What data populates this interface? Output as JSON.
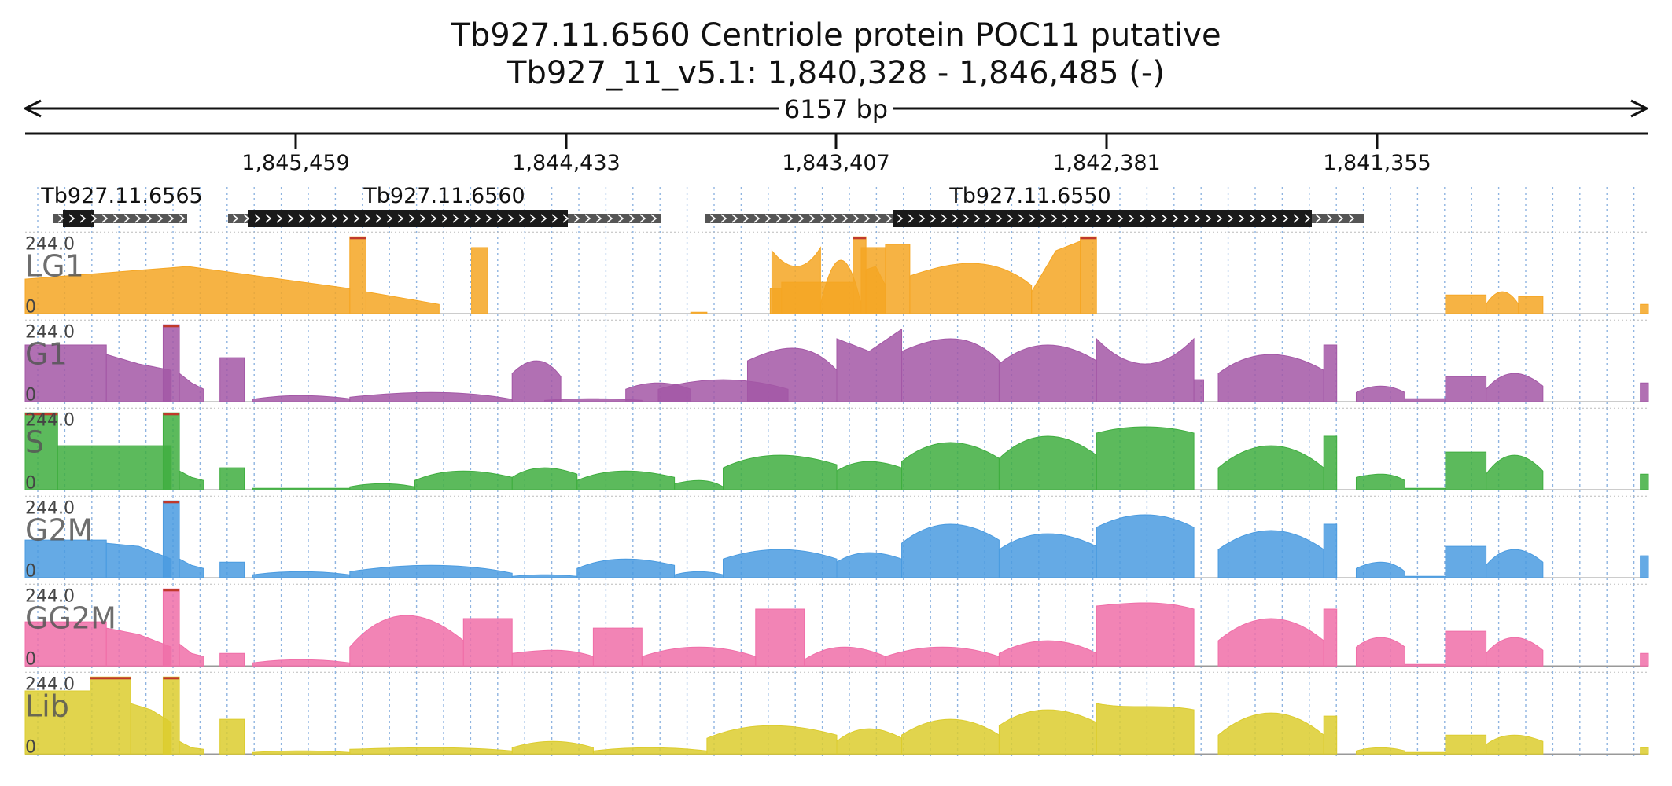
{
  "header": {
    "title_line1": "Tb927.11.6560  Centriole protein POC11  putative",
    "title_line2": "Tb927_11_v5.1: 1,840,328 - 1,846,485 (-)",
    "span_label": "6157 bp"
  },
  "axis": {
    "ticks": [
      "1,845,459",
      "1,844,433",
      "1,843,407",
      "1,842,381",
      "1,841,355"
    ]
  },
  "genes": [
    {
      "name": "Tb927.11.6565"
    },
    {
      "name": "Tb927.11.6560"
    },
    {
      "name": "Tb927.11.6550"
    }
  ],
  "colors": {
    "LG1": "#f5a623",
    "G1": "#a357a6",
    "S": "#3fae3f",
    "G2M": "#4a9be0",
    "GG2M": "#f06ea8",
    "Lib": "#dccc2e",
    "gene_block": "#1a1a1a",
    "gene_utr": "#555555",
    "grid": "#8fb4e0",
    "clip": "#c0392b"
  },
  "chart_data": {
    "type": "area",
    "x_unit": "bp (genomic coordinate, minus strand)",
    "x_range": [
      1846485,
      1840328
    ],
    "ymax_label": "244.0",
    "ymin_label": "0",
    "ylim": [
      0,
      244.0
    ],
    "tracks": [
      {
        "name": "LG1",
        "segments": [
          [
            0,
            0.2,
            110,
            150,
            80,
            "slope"
          ],
          [
            0.2,
            0.21,
            244,
            244,
            244,
            "flat"
          ],
          [
            0.21,
            0.255,
            70,
            50,
            30,
            "slope"
          ],
          [
            0.275,
            0.285,
            210,
            210,
            210,
            "flat"
          ],
          [
            0.46,
            0.49,
            200,
            150,
            210,
            "hump"
          ],
          [
            0.49,
            0.515,
            30,
            170,
            30,
            "hump"
          ],
          [
            0.515,
            0.53,
            210,
            210,
            210,
            "flat"
          ],
          [
            0.41,
            0.42,
            5,
            5,
            5,
            "flat"
          ],
          [
            0.459,
            0.466,
            80,
            80,
            80,
            "flat"
          ],
          [
            0.466,
            0.51,
            100,
            110,
            100,
            "flat"
          ],
          [
            0.51,
            0.518,
            244,
            244,
            244,
            "flat"
          ],
          [
            0.518,
            0.53,
            140,
            150,
            90,
            "slope"
          ],
          [
            0.53,
            0.545,
            220,
            220,
            220,
            "flat"
          ],
          [
            0.545,
            0.62,
            120,
            160,
            90,
            "hump"
          ],
          [
            0.62,
            0.65,
            70,
            200,
            230,
            "slope"
          ],
          [
            0.65,
            0.66,
            244,
            244,
            244,
            "flat"
          ],
          [
            0.875,
            0.9,
            60,
            60,
            60,
            "flat"
          ],
          [
            0.9,
            0.92,
            30,
            70,
            30,
            "hump"
          ],
          [
            0.92,
            0.935,
            55,
            55,
            55,
            "flat"
          ],
          [
            0.995,
            1.0,
            30,
            30,
            30,
            "flat"
          ]
        ]
      },
      {
        "name": "G1",
        "segments": [
          [
            0,
            0.05,
            180,
            200,
            160,
            "flat"
          ],
          [
            0.05,
            0.09,
            150,
            120,
            100,
            "slope"
          ],
          [
            0.085,
            0.095,
            244,
            244,
            244,
            "flat"
          ],
          [
            0.095,
            0.11,
            90,
            60,
            40,
            "slope"
          ],
          [
            0.12,
            0.135,
            140,
            140,
            140,
            "flat"
          ],
          [
            0.14,
            0.2,
            8,
            20,
            10,
            "hump"
          ],
          [
            0.2,
            0.3,
            15,
            30,
            8,
            "hump"
          ],
          [
            0.32,
            0.38,
            5,
            10,
            5,
            "hump"
          ],
          [
            0.39,
            0.47,
            40,
            70,
            40,
            "hump"
          ],
          [
            0.3,
            0.33,
            90,
            130,
            80,
            "hump"
          ],
          [
            0.37,
            0.41,
            40,
            60,
            40,
            "hump"
          ],
          [
            0.445,
            0.5,
            130,
            170,
            100,
            "hump"
          ],
          [
            0.5,
            0.54,
            200,
            160,
            230,
            "slope"
          ],
          [
            0.54,
            0.6,
            160,
            200,
            130,
            "hump"
          ],
          [
            0.6,
            0.66,
            120,
            180,
            130,
            "hump"
          ],
          [
            0.66,
            0.72,
            200,
            120,
            200,
            "hump"
          ],
          [
            0.72,
            0.726,
            70,
            70,
            70,
            "flat"
          ],
          [
            0.735,
            0.8,
            90,
            150,
            100,
            "hump"
          ],
          [
            0.8,
            0.808,
            180,
            180,
            180,
            "flat"
          ],
          [
            0.82,
            0.85,
            30,
            50,
            30,
            "hump"
          ],
          [
            0.85,
            0.875,
            10,
            10,
            10,
            "flat"
          ],
          [
            0.875,
            0.9,
            80,
            80,
            80,
            "flat"
          ],
          [
            0.9,
            0.935,
            40,
            90,
            50,
            "hump"
          ],
          [
            0.995,
            1.0,
            60,
            60,
            60,
            "flat"
          ]
        ]
      },
      {
        "name": "S",
        "segments": [
          [
            0,
            0.02,
            244,
            244,
            244,
            "flat"
          ],
          [
            0.02,
            0.09,
            140,
            160,
            120,
            "flat"
          ],
          [
            0.085,
            0.095,
            244,
            244,
            244,
            "flat"
          ],
          [
            0.095,
            0.11,
            60,
            40,
            30,
            "slope"
          ],
          [
            0.12,
            0.135,
            70,
            70,
            70,
            "flat"
          ],
          [
            0.14,
            0.2,
            5,
            5,
            5,
            "flat"
          ],
          [
            0.2,
            0.24,
            10,
            20,
            10,
            "hump"
          ],
          [
            0.24,
            0.3,
            30,
            60,
            40,
            "hump"
          ],
          [
            0.3,
            0.34,
            40,
            70,
            50,
            "hump"
          ],
          [
            0.34,
            0.4,
            30,
            60,
            40,
            "hump"
          ],
          [
            0.4,
            0.43,
            20,
            30,
            10,
            "hump"
          ],
          [
            0.43,
            0.5,
            70,
            110,
            80,
            "hump"
          ],
          [
            0.5,
            0.54,
            60,
            90,
            70,
            "hump"
          ],
          [
            0.54,
            0.6,
            90,
            150,
            100,
            "hump"
          ],
          [
            0.6,
            0.66,
            100,
            170,
            110,
            "hump"
          ],
          [
            0.66,
            0.72,
            180,
            200,
            180,
            "hump"
          ],
          [
            0.735,
            0.8,
            70,
            140,
            70,
            "hump"
          ],
          [
            0.8,
            0.808,
            170,
            170,
            170,
            "flat"
          ],
          [
            0.82,
            0.85,
            40,
            50,
            30,
            "hump"
          ],
          [
            0.85,
            0.875,
            5,
            5,
            5,
            "flat"
          ],
          [
            0.875,
            0.9,
            120,
            120,
            120,
            "flat"
          ],
          [
            0.9,
            0.935,
            50,
            110,
            60,
            "hump"
          ],
          [
            0.995,
            1.0,
            50,
            50,
            50,
            "flat"
          ]
        ]
      },
      {
        "name": "G2M",
        "segments": [
          [
            0,
            0.05,
            120,
            150,
            110,
            "flat"
          ],
          [
            0.05,
            0.09,
            110,
            100,
            60,
            "slope"
          ],
          [
            0.085,
            0.095,
            244,
            244,
            244,
            "flat"
          ],
          [
            0.095,
            0.11,
            60,
            40,
            30,
            "slope"
          ],
          [
            0.12,
            0.135,
            50,
            50,
            50,
            "flat"
          ],
          [
            0.14,
            0.2,
            10,
            20,
            10,
            "hump"
          ],
          [
            0.2,
            0.3,
            20,
            40,
            15,
            "hump"
          ],
          [
            0.3,
            0.34,
            5,
            10,
            5,
            "hump"
          ],
          [
            0.34,
            0.4,
            30,
            60,
            40,
            "hump"
          ],
          [
            0.4,
            0.43,
            10,
            20,
            10,
            "hump"
          ],
          [
            0.43,
            0.5,
            60,
            90,
            60,
            "hump"
          ],
          [
            0.5,
            0.54,
            50,
            80,
            60,
            "hump"
          ],
          [
            0.54,
            0.6,
            110,
            170,
            120,
            "hump"
          ],
          [
            0.6,
            0.66,
            90,
            140,
            100,
            "hump"
          ],
          [
            0.66,
            0.72,
            160,
            200,
            160,
            "hump"
          ],
          [
            0.735,
            0.8,
            90,
            150,
            90,
            "hump"
          ],
          [
            0.8,
            0.808,
            170,
            170,
            170,
            "flat"
          ],
          [
            0.82,
            0.85,
            30,
            50,
            20,
            "hump"
          ],
          [
            0.85,
            0.875,
            5,
            5,
            5,
            "flat"
          ],
          [
            0.875,
            0.9,
            100,
            100,
            100,
            "flat"
          ],
          [
            0.9,
            0.935,
            40,
            90,
            50,
            "hump"
          ],
          [
            0.995,
            1.0,
            70,
            70,
            70,
            "flat"
          ]
        ]
      },
      {
        "name": "GG2M",
        "segments": [
          [
            0,
            0.05,
            140,
            180,
            140,
            "flat"
          ],
          [
            0.05,
            0.09,
            120,
            100,
            60,
            "slope"
          ],
          [
            0.085,
            0.095,
            244,
            244,
            244,
            "flat"
          ],
          [
            0.095,
            0.11,
            70,
            40,
            30,
            "slope"
          ],
          [
            0.12,
            0.135,
            40,
            40,
            40,
            "flat"
          ],
          [
            0.14,
            0.2,
            10,
            20,
            10,
            "hump"
          ],
          [
            0.2,
            0.27,
            60,
            160,
            80,
            "hump"
          ],
          [
            0.27,
            0.3,
            150,
            150,
            150,
            "flat"
          ],
          [
            0.3,
            0.35,
            40,
            50,
            30,
            "hump"
          ],
          [
            0.35,
            0.38,
            120,
            120,
            120,
            "flat"
          ],
          [
            0.38,
            0.45,
            30,
            60,
            30,
            "hump"
          ],
          [
            0.45,
            0.48,
            180,
            180,
            180,
            "flat"
          ],
          [
            0.48,
            0.53,
            20,
            60,
            30,
            "hump"
          ],
          [
            0.53,
            0.6,
            30,
            60,
            30,
            "hump"
          ],
          [
            0.6,
            0.66,
            40,
            80,
            40,
            "hump"
          ],
          [
            0.66,
            0.72,
            190,
            200,
            180,
            "hump"
          ],
          [
            0.735,
            0.8,
            80,
            150,
            80,
            "hump"
          ],
          [
            0.8,
            0.808,
            180,
            180,
            180,
            "flat"
          ],
          [
            0.82,
            0.85,
            60,
            90,
            60,
            "hump"
          ],
          [
            0.85,
            0.875,
            5,
            5,
            5,
            "flat"
          ],
          [
            0.875,
            0.9,
            110,
            110,
            110,
            "flat"
          ],
          [
            0.9,
            0.935,
            40,
            90,
            50,
            "hump"
          ],
          [
            0.995,
            1.0,
            40,
            40,
            40,
            "flat"
          ]
        ]
      },
      {
        "name": "Lib",
        "segments": [
          [
            0,
            0.04,
            200,
            230,
            200,
            "flat"
          ],
          [
            0.04,
            0.065,
            244,
            244,
            244,
            "flat"
          ],
          [
            0.065,
            0.09,
            160,
            140,
            100,
            "slope"
          ],
          [
            0.085,
            0.095,
            244,
            244,
            244,
            "flat"
          ],
          [
            0.095,
            0.11,
            40,
            20,
            15,
            "slope"
          ],
          [
            0.12,
            0.135,
            110,
            110,
            110,
            "flat"
          ],
          [
            0.14,
            0.2,
            5,
            10,
            5,
            "hump"
          ],
          [
            0.2,
            0.3,
            15,
            20,
            10,
            "hump"
          ],
          [
            0.3,
            0.35,
            20,
            40,
            20,
            "hump"
          ],
          [
            0.35,
            0.42,
            10,
            20,
            10,
            "hump"
          ],
          [
            0.42,
            0.5,
            50,
            90,
            60,
            "hump"
          ],
          [
            0.5,
            0.54,
            40,
            80,
            50,
            "hump"
          ],
          [
            0.54,
            0.6,
            60,
            110,
            60,
            "hump"
          ],
          [
            0.6,
            0.66,
            90,
            140,
            100,
            "hump"
          ],
          [
            0.66,
            0.72,
            160,
            150,
            140,
            "hump"
          ],
          [
            0.735,
            0.8,
            60,
            130,
            60,
            "hump"
          ],
          [
            0.8,
            0.808,
            120,
            120,
            120,
            "flat"
          ],
          [
            0.82,
            0.85,
            10,
            20,
            10,
            "hump"
          ],
          [
            0.85,
            0.875,
            5,
            5,
            5,
            "flat"
          ],
          [
            0.875,
            0.9,
            60,
            60,
            60,
            "flat"
          ],
          [
            0.9,
            0.935,
            30,
            60,
            40,
            "hump"
          ],
          [
            0.995,
            1.0,
            20,
            20,
            20,
            "flat"
          ]
        ]
      }
    ]
  }
}
